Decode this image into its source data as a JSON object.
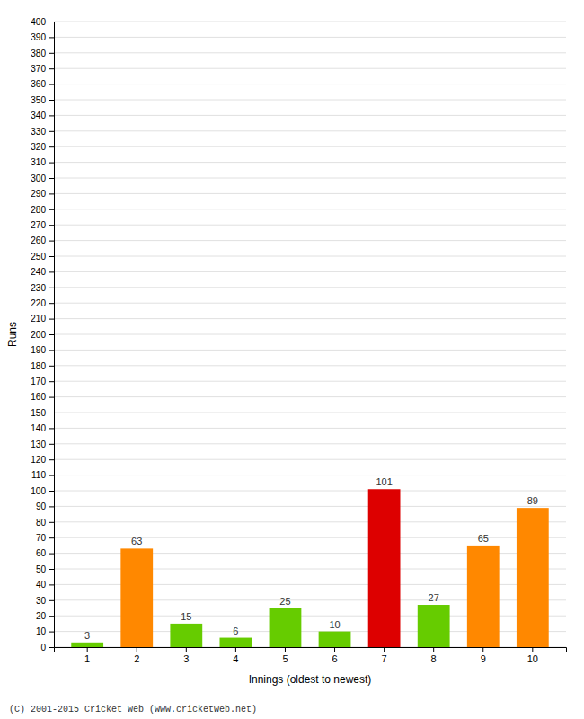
{
  "chart_data": {
    "type": "bar",
    "categories": [
      "1",
      "2",
      "3",
      "4",
      "5",
      "6",
      "7",
      "8",
      "9",
      "10"
    ],
    "values": [
      3,
      63,
      15,
      6,
      25,
      10,
      101,
      27,
      65,
      89
    ],
    "colors": [
      "#66cc00",
      "#ff8800",
      "#66cc00",
      "#66cc00",
      "#66cc00",
      "#66cc00",
      "#dd0000",
      "#66cc00",
      "#ff8800",
      "#ff8800"
    ],
    "x_label": "Innings (oldest to newest)",
    "y_label": "Runs",
    "ylim": [
      0,
      400
    ],
    "yticks": [
      0,
      10,
      20,
      30,
      40,
      50,
      60,
      70,
      80,
      90,
      100,
      110,
      120,
      130,
      140,
      150,
      160,
      170,
      180,
      190,
      200,
      210,
      220,
      230,
      240,
      250,
      260,
      270,
      280,
      290,
      300,
      310,
      320,
      330,
      340,
      350,
      360,
      370,
      380,
      390,
      400
    ],
    "grid": true,
    "data_labels": true,
    "annotations": [
      "(C) 2001-2015 Cricket Web (www.cricketweb.net)"
    ]
  }
}
